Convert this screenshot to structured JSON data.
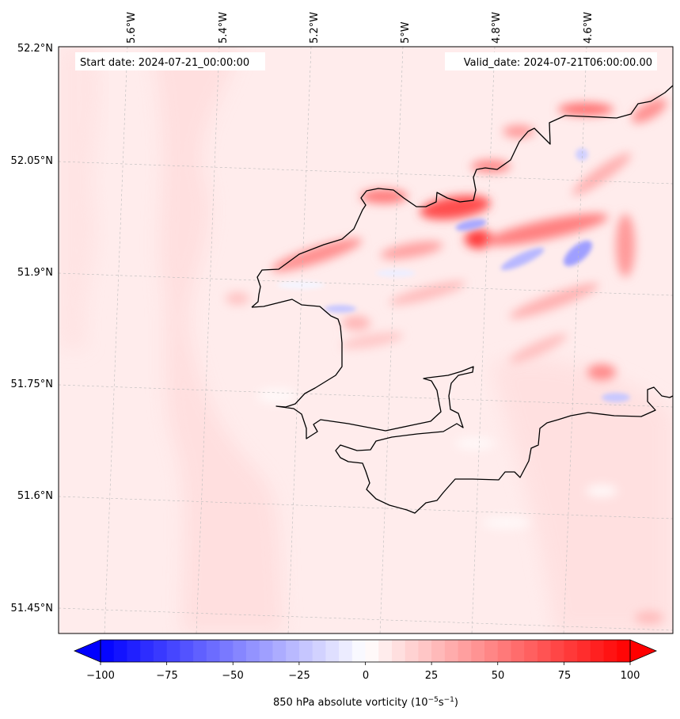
{
  "map": {
    "start_label": "Start date: 2024-07-21_00:00:00",
    "valid_label": "Valid_date: 2024-07-21T06:00:00.00",
    "lon_ticks": [
      "5.6°W",
      "5.4°W",
      "5.2°W",
      "5°W",
      "4.8°W",
      "4.6°W"
    ],
    "lat_ticks": [
      "52.2°N",
      "52.05°N",
      "51.9°N",
      "51.75°N",
      "51.6°N",
      "51.45°N"
    ],
    "colors": {
      "coastline": "#000000",
      "gridline": "#bbbbbb",
      "positive_max": "#ff0000",
      "negative_max": "#0000ff",
      "background_field": "#ffecec"
    }
  },
  "colorbar": {
    "ticks": [
      "−100",
      "−75",
      "−50",
      "−25",
      "0",
      "25",
      "50",
      "75",
      "100"
    ],
    "label_main": "850 hPa absolute vorticity (10",
    "label_exp1": "−5",
    "label_mid": "s",
    "label_exp2": "−1",
    "label_end": ")",
    "min": -100,
    "max": 100,
    "levels": 40,
    "extend": "both"
  }
}
